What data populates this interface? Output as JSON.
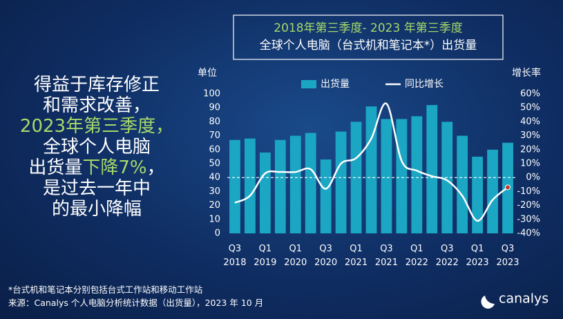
{
  "headline": {
    "lines": [
      [
        {
          "text": "得益于库存修正",
          "highlight": false
        }
      ],
      [
        {
          "text": "和需求改善，",
          "highlight": false
        }
      ],
      [
        {
          "text": "2023年第三季度，",
          "highlight": true
        }
      ],
      [
        {
          "text": "全球个人电脑",
          "highlight": false
        }
      ],
      [
        {
          "text": "出货量",
          "highlight": false
        },
        {
          "text": "下降7%",
          "highlight": true
        },
        {
          "text": "，",
          "highlight": false
        }
      ],
      [
        {
          "text": "是过去一年中",
          "highlight": false
        }
      ],
      [
        {
          "text": "的最小降幅",
          "highlight": false
        }
      ]
    ]
  },
  "chart_data": {
    "type": "bar",
    "title": "2018年第三季度- 2023 年第三季度",
    "subtitle": "全球个人电脑（台式机和笔记本*）出货量",
    "y_label": "单位",
    "y2_label": "增长率",
    "categories": [
      "Q3 2018",
      null,
      "Q1 2019",
      null,
      "Q1 2020",
      null,
      "Q3 2020",
      null,
      "Q1 2021",
      null,
      "Q3 2021",
      null,
      "Q1 2022",
      null,
      "Q3 2022",
      null,
      "Q1 2023",
      null,
      "Q3 2023"
    ],
    "series": [
      {
        "name": "出货量",
        "type": "bar",
        "color": "#1ba6c4",
        "values": [
          67,
          68,
          58,
          67,
          70,
          72,
          53,
          73,
          80,
          91,
          82,
          82,
          84,
          92,
          80,
          70,
          55,
          60,
          65
        ]
      },
      {
        "name": "同比增长",
        "type": "line",
        "axis": "y2",
        "color": "#ffffff",
        "values": [
          -18,
          -13,
          3,
          4,
          4,
          6,
          -8,
          10,
          14,
          28,
          53,
          12,
          5,
          1,
          -2,
          -13,
          -31,
          -16,
          -7
        ]
      }
    ],
    "ylim": [
      0,
      100
    ],
    "yticks": [
      0,
      10,
      20,
      30,
      40,
      50,
      60,
      70,
      80,
      90,
      100
    ],
    "y2lim": [
      -40,
      60
    ],
    "y2ticks": [
      {
        "value": -40,
        "label": "-40%"
      },
      {
        "value": -30,
        "label": "-30%"
      },
      {
        "value": -20,
        "label": "-20%"
      },
      {
        "value": -10,
        "label": "-10%"
      },
      {
        "value": 0,
        "label": "0%"
      },
      {
        "value": 10,
        "label": "10%"
      },
      {
        "value": 20,
        "label": "20%"
      },
      {
        "value": 30,
        "label": "30%"
      },
      {
        "value": 40,
        "label": "40%"
      },
      {
        "value": 50,
        "label": "50%"
      },
      {
        "value": 60,
        "label": "60%"
      }
    ],
    "legend": "top"
  },
  "notes": [
    "*台式机和笔记本分别包括台式工作站和移动工作站",
    "来源：Canalys 个人电脑分析统计数据（出货量），2023 年 10 月"
  ],
  "logo": "canalys"
}
